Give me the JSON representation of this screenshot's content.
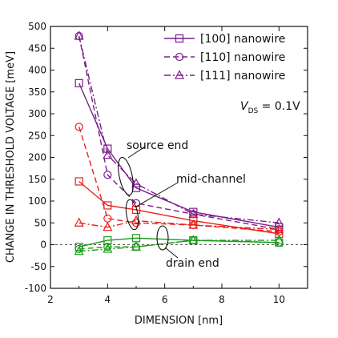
{
  "chart_data": {
    "type": "line",
    "xlabel": "DIMENSION [nm]",
    "ylabel": "CHANGE IN THRESHOLD VOLTAGE [meV]",
    "xlim": [
      2,
      11
    ],
    "ylim": [
      -100,
      500
    ],
    "xticks": [
      "2",
      "4",
      "6",
      "8",
      "10"
    ],
    "yticks": [
      "-100",
      "-50",
      "0",
      "50",
      "100",
      "150",
      "200",
      "250",
      "300",
      "350",
      "400",
      "450",
      "500"
    ],
    "legend": {
      "placement": "top-right",
      "entries": [
        {
          "label": "[100] nanowire",
          "dash": "solid",
          "marker": "square"
        },
        {
          "label": "[110] nanowire",
          "dash": "dashed",
          "marker": "circle"
        },
        {
          "label": "[111] nanowire",
          "dash": "dashdot",
          "marker": "triangle"
        }
      ]
    },
    "vds": {
      "prefix": "V",
      "sub": "DS",
      "suffix": " = 0.1V"
    },
    "annotations": {
      "source": "source end",
      "mid": "mid-channel",
      "drain": "drain end"
    },
    "colors": {
      "source": "#7b1f8c",
      "mid": "#e8211c",
      "drain": "#1a9a1a"
    },
    "series": [
      {
        "group": "source",
        "orientation": "[100]",
        "dash": "solid",
        "marker": "square",
        "x": [
          3,
          4,
          5,
          7,
          10
        ],
        "y": [
          370,
          220,
          130,
          75,
          40
        ]
      },
      {
        "group": "source",
        "orientation": "[110]",
        "dash": "dashed",
        "marker": "circle",
        "x": [
          3,
          4,
          5,
          7,
          10
        ],
        "y": [
          478,
          160,
          95,
          70,
          35
        ]
      },
      {
        "group": "source",
        "orientation": "[111]",
        "dash": "dashdot",
        "marker": "triangle",
        "x": [
          3,
          4,
          5,
          7,
          10
        ],
        "y": [
          478,
          205,
          140,
          70,
          50
        ]
      },
      {
        "group": "mid",
        "orientation": "[100]",
        "dash": "solid",
        "marker": "square",
        "x": [
          3,
          4,
          5,
          7,
          10
        ],
        "y": [
          145,
          90,
          80,
          55,
          25
        ]
      },
      {
        "group": "mid",
        "orientation": "[110]",
        "dash": "dashed",
        "marker": "circle",
        "x": [
          3,
          4,
          5,
          7,
          10
        ],
        "y": [
          270,
          60,
          50,
          45,
          30
        ]
      },
      {
        "group": "mid",
        "orientation": "[111]",
        "dash": "dashdot",
        "marker": "triangle",
        "x": [
          3,
          4,
          5,
          7,
          10
        ],
        "y": [
          50,
          40,
          55,
          45,
          35
        ]
      },
      {
        "group": "drain",
        "orientation": "[100]",
        "dash": "solid",
        "marker": "square",
        "x": [
          3,
          4,
          5,
          7,
          10
        ],
        "y": [
          -5,
          10,
          15,
          10,
          5
        ]
      },
      {
        "group": "drain",
        "orientation": "[110]",
        "dash": "dashed",
        "marker": "circle",
        "x": [
          3,
          4,
          5,
          7,
          10
        ],
        "y": [
          -10,
          -5,
          -5,
          10,
          5
        ]
      },
      {
        "group": "drain",
        "orientation": "[111]",
        "dash": "dashdot",
        "marker": "triangle",
        "x": [
          3,
          4,
          5,
          7,
          10
        ],
        "y": [
          -15,
          -10,
          -5,
          10,
          10
        ]
      }
    ]
  }
}
